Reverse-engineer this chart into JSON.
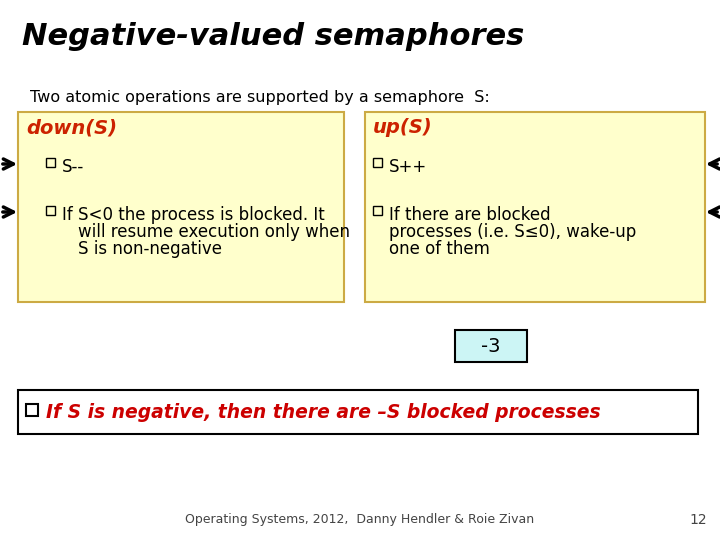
{
  "title": "Negative-valued semaphores",
  "subtitle": "Two atomic operations are supported by a semaphore  S:",
  "bg_color": "#ffffff",
  "title_color": "#000000",
  "subtitle_color": "#000000",
  "box_bg": "#ffffcc",
  "box_border": "#ccaa44",
  "left_box_title": "down(S)",
  "left_box_item1": "S--",
  "left_box_item2_l1": "If S<0 the process is blocked. It",
  "left_box_item2_l2": "will resume execution only when",
  "left_box_item2_l3": "S is non-negative",
  "right_box_title": "up(S)",
  "right_box_item1": "S++",
  "right_box_item2_l1": "If there are blocked",
  "right_box_item2_l2": "processes (i.e. S≤0), wake-up",
  "right_box_item2_l3": "one of them",
  "box_title_color": "#cc2200",
  "box_text_color": "#000000",
  "neg3_box_color": "#ccf5f5",
  "neg3_border": "#000000",
  "neg3_text": "-3",
  "neg3_text_color": "#000000",
  "bottom_box_bg": "#ffffff",
  "bottom_box_border": "#000000",
  "bottom_text": "If S is negative, then there are –S blocked processes",
  "bottom_text_color": "#cc0000",
  "bottom_checkbox_color": "#000000",
  "footer_text": "Operating Systems, 2012,  Danny Hendler & Roie Zivan",
  "footer_color": "#444444",
  "page_num": "12"
}
